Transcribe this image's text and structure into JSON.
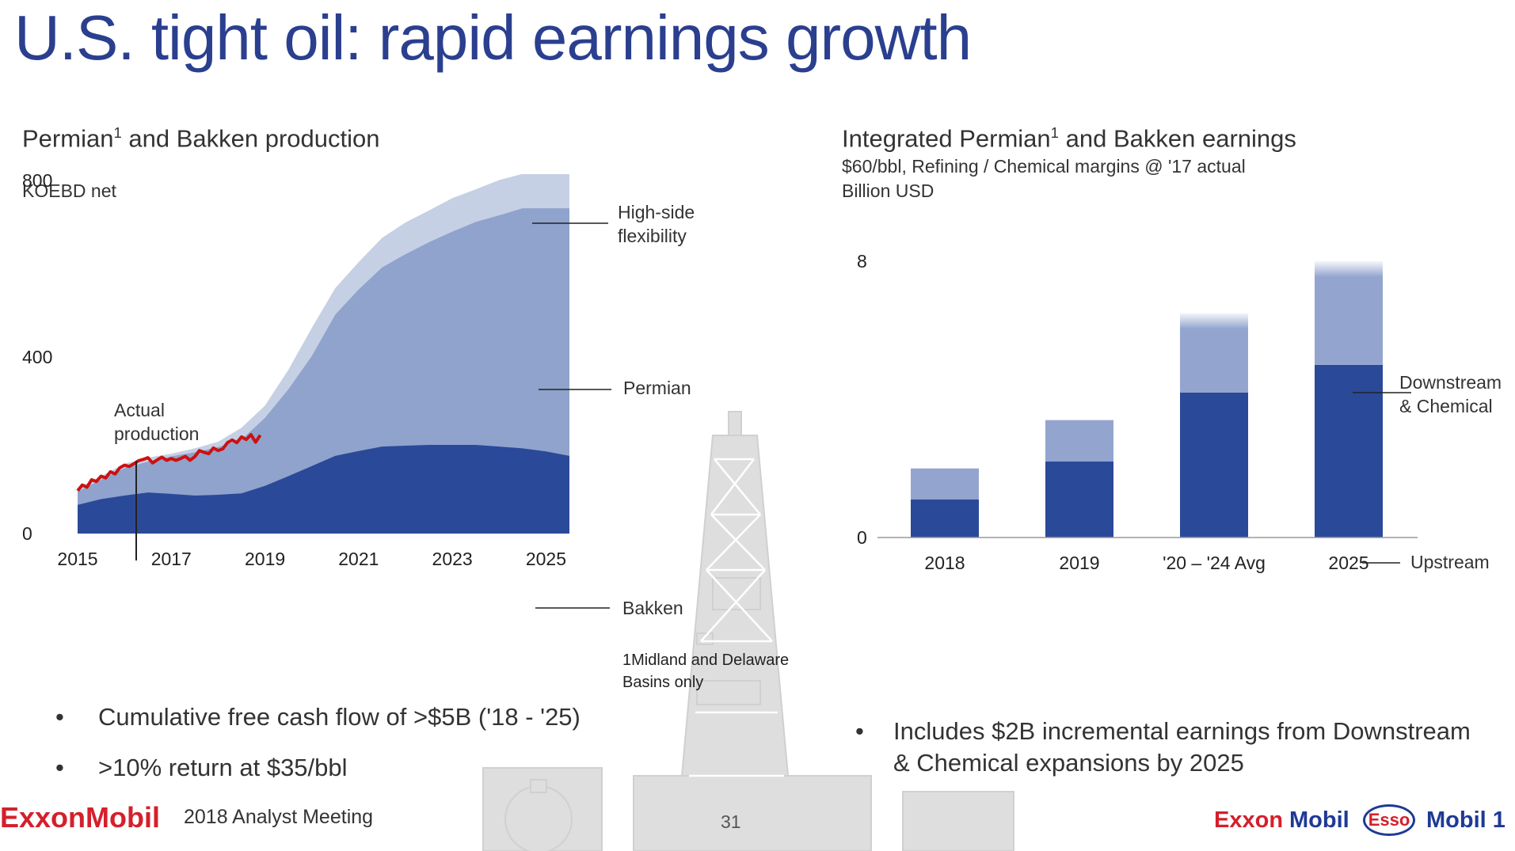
{
  "title": "U.S. tight oil: rapid earnings growth",
  "left": {
    "subtitle_main": "Permian",
    "subtitle_sup": "1",
    "subtitle_rest": " and Bakken production",
    "unit": "KOEBD net",
    "annotation_actual": [
      "Actual",
      "production"
    ],
    "label_high_side": [
      "High-side",
      "flexibility"
    ],
    "label_permian": "Permian",
    "label_bakken": "Bakken",
    "footnote": [
      "1Midland and Delaware",
      "Basins only"
    ]
  },
  "right": {
    "subtitle_main": "Integrated Permian",
    "subtitle_sup": "1",
    "subtitle_rest": " and Bakken earnings",
    "subtitle_line2": "$60/bbl, Refining / Chemical margins @ '17 actual",
    "unit": "Billion USD",
    "label_downstream": [
      "Downstream",
      "& Chemical"
    ],
    "label_upstream": "Upstream"
  },
  "bullets_left": [
    "Cumulative free cash flow of >$5B ('18 - '25)",
    ">10% return at $35/bbl"
  ],
  "bullets_right": [
    "Includes $2B incremental earnings from Downstream",
    "& Chemical expansions by 2025"
  ],
  "footer": {
    "logo": "ExxonMobil",
    "meeting": "2018 Analyst Meeting",
    "page": "31",
    "brands": [
      "Exxon",
      "Mobil",
      "Esso",
      "Mobil 1"
    ]
  },
  "colors": {
    "title": "#2b3f8f",
    "bakken": "#2b4999",
    "permian": "#8fa3cc",
    "high_side": "#c6d0e4",
    "actual": "#cc1111",
    "upstream": "#2b4999",
    "downstream": "#93a4cf",
    "brand_red": "#d4202c",
    "brand_blue": "#1e3a96"
  },
  "chart_data": [
    {
      "type": "area",
      "title": "Permian1 and Bakken production",
      "ylabel": "KOEBD net",
      "ylim": [
        0,
        800
      ],
      "yticks": [
        0,
        400,
        800
      ],
      "xticks": [
        2015,
        2017,
        2019,
        2021,
        2023,
        2025
      ],
      "xlim": [
        2015,
        2025.5
      ],
      "x": [
        2015,
        2015.5,
        2016,
        2016.5,
        2017,
        2017.5,
        2018,
        2018.5,
        2019,
        2019.5,
        2020,
        2020.5,
        2021,
        2021.5,
        2022,
        2022.5,
        2023,
        2023.5,
        2024,
        2024.5,
        2025,
        2025.5
      ],
      "series": [
        {
          "name": "Bakken",
          "values": [
            65,
            78,
            86,
            93,
            90,
            86,
            88,
            91,
            108,
            130,
            153,
            176,
            187,
            197,
            199,
            201,
            201,
            201,
            197,
            193,
            186,
            176
          ]
        },
        {
          "name": "Permian",
          "values": [
            95,
            122,
            148,
            163,
            175,
            184,
            196,
            213,
            262,
            327,
            402,
            496,
            553,
            603,
            633,
            660,
            684,
            706,
            721,
            737,
            737,
            737
          ]
        },
        {
          "name": "High-side flexibility",
          "values": [
            103,
            130,
            158,
            172,
            181,
            193,
            208,
            240,
            290,
            371,
            466,
            556,
            615,
            670,
            705,
            732,
            760,
            780,
            801,
            815,
            815,
            815
          ]
        }
      ],
      "actual_production": {
        "name": "Actual production",
        "x": [
          2015.0,
          2015.1,
          2015.2,
          2015.3,
          2015.4,
          2015.5,
          2015.6,
          2015.7,
          2015.8,
          2015.9,
          2016.0,
          2016.1,
          2016.2,
          2016.3,
          2016.4,
          2016.5,
          2016.6,
          2016.7,
          2016.8,
          2016.9,
          2017.0,
          2017.1,
          2017.2,
          2017.3,
          2017.4,
          2017.5,
          2017.6,
          2017.7,
          2017.8,
          2017.9,
          2018.0,
          2018.1,
          2018.2,
          2018.3,
          2018.4,
          2018.5,
          2018.6,
          2018.7,
          2018.8,
          2018.9
        ],
        "values": [
          97,
          110,
          105,
          122,
          118,
          130,
          126,
          140,
          135,
          149,
          155,
          152,
          158,
          165,
          168,
          172,
          160,
          167,
          173,
          166,
          170,
          166,
          170,
          175,
          166,
          174,
          188,
          184,
          181,
          194,
          188,
          192,
          206,
          212,
          206,
          219,
          213,
          224,
          207,
          223
        ]
      }
    },
    {
      "type": "bar",
      "stacked": true,
      "title": "Integrated Permian1 and Bakken earnings",
      "subtitle": "$60/bbl, Refining / Chemical margins @ '17 actual",
      "ylabel": "Billion USD",
      "ylim": [
        0,
        8
      ],
      "yticks": [
        0,
        8
      ],
      "categories": [
        "2018",
        "2019",
        "'20 – '24 Avg",
        "2025"
      ],
      "series": [
        {
          "name": "Upstream",
          "values": [
            1.1,
            2.2,
            4.2,
            5.0
          ]
        },
        {
          "name": "Downstream & Chemical",
          "values": [
            0.9,
            1.2,
            2.3,
            3.0
          ]
        }
      ]
    }
  ]
}
